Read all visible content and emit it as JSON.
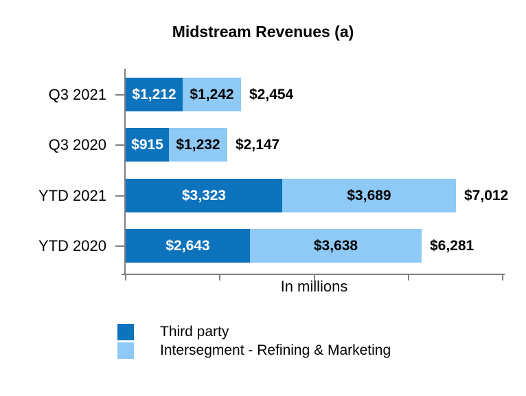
{
  "chart_data": {
    "type": "bar",
    "orientation": "horizontal",
    "stacked": true,
    "title": "Midstream Revenues (a)",
    "xlabel": "In millions",
    "xlim": [
      0,
      8000
    ],
    "x_tick_interval": 2000,
    "x_tick_labels_shown": false,
    "grid": false,
    "axis_color": "#808080",
    "categories": [
      "Q3 2021",
      "Q3 2020",
      "YTD 2021",
      "YTD 2020"
    ],
    "series": [
      {
        "name": "Third party",
        "color": "#0e73bd",
        "label_color": "#ffffff",
        "values": [
          1212,
          915,
          3323,
          2643
        ],
        "labels": [
          "$1,212",
          "$915",
          "$3,323",
          "$2,643"
        ]
      },
      {
        "name": "Intersegment - Refining & Marketing",
        "color": "#8fc9f6",
        "label_color": "#000000",
        "values": [
          1242,
          1232,
          3689,
          3638
        ],
        "labels": [
          "$1,242",
          "$1,232",
          "$3,689",
          "$3,638"
        ]
      }
    ],
    "totals": {
      "values": [
        2454,
        2147,
        7012,
        6281
      ],
      "labels": [
        "$2,454",
        "$2,147",
        "$7,012",
        "$6,281"
      ]
    },
    "legend_position": "bottom-left"
  }
}
